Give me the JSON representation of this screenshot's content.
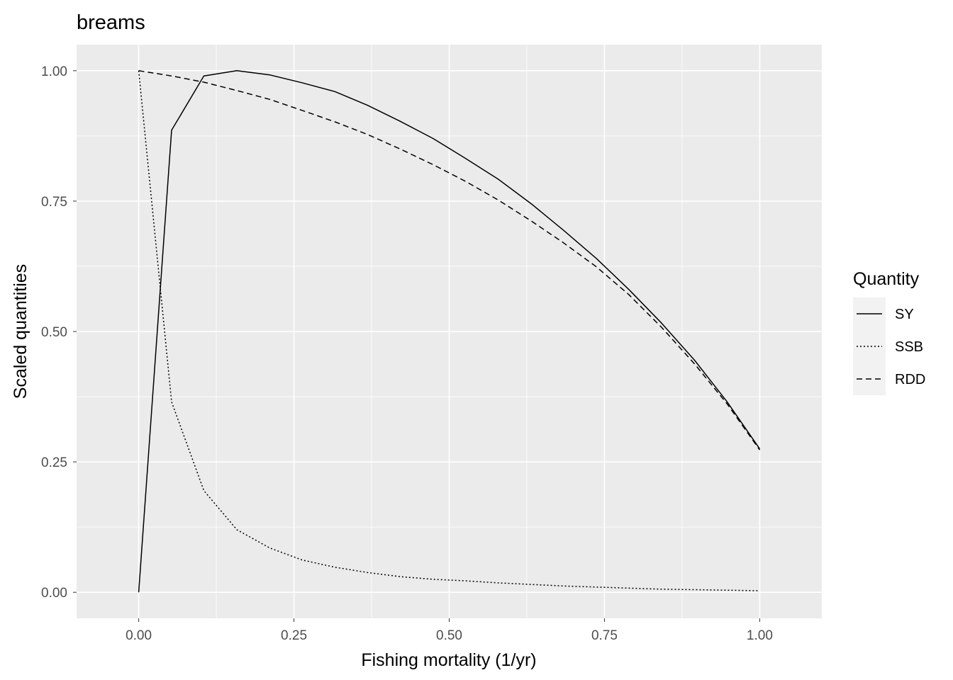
{
  "chart_data": {
    "type": "line",
    "title": "breams",
    "xlabel": "Fishing mortality (1/yr)",
    "ylabel": "Scaled quantities",
    "xlim": [
      -0.1,
      1.1
    ],
    "ylim": [
      -0.05,
      1.05
    ],
    "x_ticks": [
      0.0,
      0.25,
      0.5,
      0.75,
      1.0
    ],
    "x_tick_labels": [
      "0.00",
      "0.25",
      "0.50",
      "0.75",
      "1.00"
    ],
    "y_ticks": [
      0.0,
      0.25,
      0.5,
      0.75,
      1.0
    ],
    "y_tick_labels": [
      "0.00",
      "0.25",
      "0.50",
      "0.75",
      "1.00"
    ],
    "grid": true,
    "panel_background": "#ebebeb",
    "grid_color": "#ffffff",
    "line_color": "#000000",
    "legend": {
      "title": "Quantity",
      "position": "right"
    },
    "series": [
      {
        "name": "SY",
        "linetype": "solid",
        "x": [
          0.0,
          0.053,
          0.105,
          0.158,
          0.211,
          0.263,
          0.316,
          0.368,
          0.421,
          0.474,
          0.526,
          0.579,
          0.632,
          0.684,
          0.737,
          0.789,
          0.842,
          0.895,
          0.947,
          1.0
        ],
        "y": [
          0.0,
          0.886,
          0.99,
          1.0,
          0.992,
          0.977,
          0.96,
          0.934,
          0.903,
          0.87,
          0.832,
          0.792,
          0.745,
          0.694,
          0.64,
          0.581,
          0.516,
          0.445,
          0.366,
          0.275
        ]
      },
      {
        "name": "SSB",
        "linetype": "dotted",
        "x": [
          0.0,
          0.053,
          0.105,
          0.158,
          0.211,
          0.263,
          0.316,
          0.368,
          0.421,
          0.474,
          0.526,
          0.579,
          0.632,
          0.684,
          0.737,
          0.789,
          0.842,
          0.895,
          0.947,
          1.0
        ],
        "y": [
          1.0,
          0.365,
          0.195,
          0.12,
          0.085,
          0.062,
          0.048,
          0.038,
          0.03,
          0.025,
          0.022,
          0.018,
          0.015,
          0.012,
          0.01,
          0.008,
          0.006,
          0.005,
          0.004,
          0.003
        ]
      },
      {
        "name": "RDD",
        "linetype": "dashed",
        "x": [
          0.0,
          0.053,
          0.105,
          0.158,
          0.211,
          0.263,
          0.316,
          0.368,
          0.421,
          0.474,
          0.526,
          0.579,
          0.632,
          0.684,
          0.737,
          0.789,
          0.842,
          0.895,
          0.947,
          1.0
        ],
        "y": [
          1.0,
          0.99,
          0.978,
          0.962,
          0.945,
          0.924,
          0.902,
          0.878,
          0.85,
          0.82,
          0.788,
          0.752,
          0.712,
          0.67,
          0.624,
          0.571,
          0.508,
          0.438,
          0.362,
          0.273
        ]
      }
    ]
  }
}
